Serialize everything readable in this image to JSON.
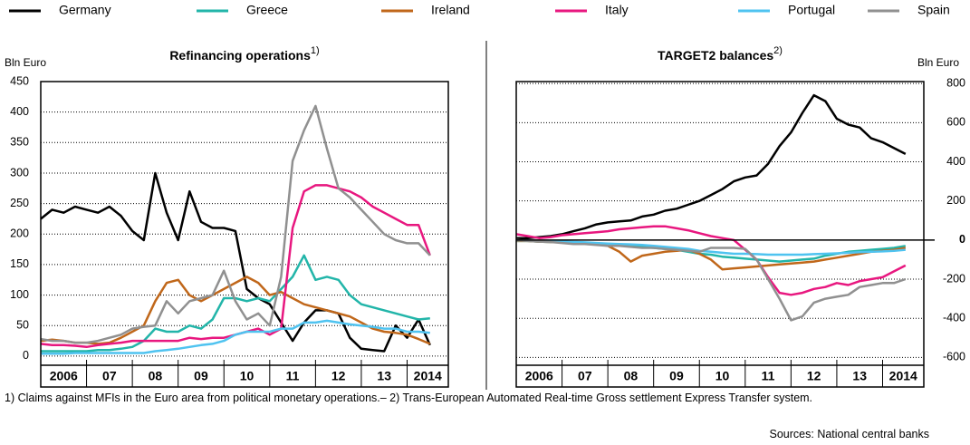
{
  "chart_data": [
    {
      "type": "line",
      "title": "Refinancing operations",
      "title_note": "1)",
      "y_label": "Bln Euro",
      "yaxis_position": "left",
      "grid": true,
      "x": [
        2006,
        2006.25,
        2006.5,
        2006.75,
        2007,
        2007.25,
        2007.5,
        2007.75,
        2008,
        2008.25,
        2008.5,
        2008.75,
        2009,
        2009.25,
        2009.5,
        2009.75,
        2010,
        2010.25,
        2010.5,
        2010.75,
        2011,
        2011.25,
        2011.5,
        2011.75,
        2012,
        2012.25,
        2012.5,
        2012.75,
        2013,
        2013.25,
        2013.5,
        2013.75,
        2014,
        2014.25,
        2014.5
      ],
      "xlim": [
        2006,
        2014.9
      ],
      "xticks": [
        {
          "value": 2006,
          "label": "2006"
        },
        {
          "value": 2007,
          "label": "07"
        },
        {
          "value": 2008,
          "label": "08"
        },
        {
          "value": 2009,
          "label": "09"
        },
        {
          "value": 2010,
          "label": "10"
        },
        {
          "value": 2011,
          "label": "11"
        },
        {
          "value": 2012,
          "label": "12"
        },
        {
          "value": 2013,
          "label": "13"
        },
        {
          "value": 2014,
          "label": "2014"
        }
      ],
      "ylim": [
        -15,
        450
      ],
      "yticks": [
        0,
        50,
        100,
        150,
        200,
        250,
        300,
        350,
        400,
        450
      ],
      "series": [
        {
          "name": "Germany",
          "color": "#000000",
          "values": [
            225,
            240,
            235,
            245,
            240,
            235,
            245,
            230,
            205,
            190,
            300,
            235,
            190,
            270,
            220,
            210,
            210,
            205,
            110,
            95,
            85,
            55,
            25,
            55,
            75,
            75,
            70,
            30,
            12,
            10,
            8,
            50,
            30,
            60,
            18
          ]
        },
        {
          "name": "Greece",
          "color": "#22b5a9",
          "values": [
            8,
            8,
            8,
            8,
            8,
            10,
            10,
            12,
            15,
            25,
            45,
            40,
            40,
            50,
            45,
            60,
            95,
            95,
            90,
            95,
            90,
            110,
            130,
            165,
            125,
            130,
            125,
            100,
            85,
            80,
            75,
            70,
            65,
            60,
            62
          ]
        },
        {
          "name": "Ireland",
          "color": "#c0671a",
          "values": [
            25,
            27,
            25,
            22,
            22,
            20,
            22,
            30,
            40,
            50,
            90,
            120,
            125,
            100,
            90,
            100,
            110,
            120,
            130,
            120,
            100,
            105,
            95,
            85,
            80,
            75,
            70,
            65,
            55,
            45,
            40,
            38,
            35,
            28,
            20
          ]
        },
        {
          "name": "Italy",
          "color": "#e8177f",
          "values": [
            20,
            18,
            18,
            17,
            15,
            18,
            20,
            22,
            25,
            25,
            25,
            25,
            25,
            30,
            28,
            30,
            30,
            35,
            40,
            45,
            35,
            45,
            210,
            270,
            280,
            280,
            275,
            270,
            260,
            245,
            235,
            225,
            215,
            215,
            165
          ]
        },
        {
          "name": "Portugal",
          "color": "#4fc3f0",
          "values": [
            4,
            4,
            4,
            5,
            5,
            5,
            5,
            5,
            5,
            5,
            8,
            10,
            12,
            15,
            18,
            20,
            25,
            35,
            40,
            40,
            40,
            45,
            45,
            55,
            55,
            58,
            55,
            52,
            50,
            48,
            45,
            45,
            40,
            40,
            38
          ]
        },
        {
          "name": "Spain",
          "color": "#909090",
          "values": [
            28,
            25,
            25,
            22,
            22,
            25,
            30,
            35,
            45,
            48,
            50,
            90,
            70,
            90,
            95,
            100,
            140,
            90,
            60,
            70,
            50,
            130,
            320,
            370,
            410,
            340,
            275,
            260,
            240,
            220,
            200,
            190,
            185,
            185,
            165
          ]
        }
      ]
    },
    {
      "type": "line",
      "title": "TARGET2 balances",
      "title_note": "2)",
      "y_label": "Bln Euro",
      "yaxis_position": "right",
      "grid": true,
      "zero_line": true,
      "x": [
        2006,
        2006.25,
        2006.5,
        2006.75,
        2007,
        2007.25,
        2007.5,
        2007.75,
        2008,
        2008.25,
        2008.5,
        2008.75,
        2009,
        2009.25,
        2009.5,
        2009.75,
        2010,
        2010.25,
        2010.5,
        2010.75,
        2011,
        2011.25,
        2011.5,
        2011.75,
        2012,
        2012.25,
        2012.5,
        2012.75,
        2013,
        2013.25,
        2013.5,
        2013.75,
        2014,
        2014.25,
        2014.5
      ],
      "xlim": [
        2006,
        2014.9
      ],
      "xticks": [
        {
          "value": 2006,
          "label": "2006"
        },
        {
          "value": 2007,
          "label": "07"
        },
        {
          "value": 2008,
          "label": "08"
        },
        {
          "value": 2009,
          "label": "09"
        },
        {
          "value": 2010,
          "label": "10"
        },
        {
          "value": 2011,
          "label": "11"
        },
        {
          "value": 2012,
          "label": "12"
        },
        {
          "value": 2013,
          "label": "13"
        },
        {
          "value": 2014,
          "label": "2014"
        }
      ],
      "ylim": [
        -640,
        810
      ],
      "yticks": [
        -600,
        -400,
        -200,
        0,
        200,
        400,
        600,
        800
      ],
      "series": [
        {
          "color": "#000000",
          "values": [
            10,
            10,
            15,
            20,
            30,
            45,
            60,
            80,
            90,
            95,
            100,
            120,
            130,
            150,
            160,
            180,
            200,
            230,
            260,
            300,
            320,
            330,
            390,
            480,
            550,
            650,
            740,
            710,
            620,
            590,
            575,
            520,
            500,
            470,
            440
          ]
        },
        {
          "color": "#22b5a9",
          "values": [
            -5,
            -5,
            -8,
            -10,
            -10,
            -12,
            -15,
            -20,
            -20,
            -25,
            -30,
            -35,
            -40,
            -45,
            -50,
            -60,
            -70,
            -75,
            -85,
            -90,
            -95,
            -100,
            -105,
            -110,
            -105,
            -100,
            -95,
            -80,
            -70,
            -60,
            -55,
            -50,
            -45,
            -40,
            -30
          ]
        },
        {
          "color": "#c0671a",
          "values": [
            -5,
            -5,
            -8,
            -10,
            -10,
            -12,
            -15,
            -20,
            -30,
            -60,
            -110,
            -80,
            -70,
            -60,
            -55,
            -50,
            -70,
            -100,
            -150,
            -145,
            -140,
            -135,
            -130,
            -125,
            -120,
            -115,
            -110,
            -100,
            -90,
            -80,
            -70,
            -60,
            -55,
            -50,
            -40
          ]
        },
        {
          "color": "#e8177f",
          "values": [
            30,
            20,
            10,
            15,
            25,
            30,
            35,
            40,
            45,
            55,
            60,
            65,
            70,
            70,
            60,
            50,
            35,
            20,
            10,
            0,
            -50,
            -100,
            -190,
            -270,
            -280,
            -270,
            -250,
            -240,
            -220,
            -230,
            -210,
            -200,
            -190,
            -160,
            -130
          ]
        },
        {
          "color": "#4fc3f0",
          "values": [
            -2,
            -3,
            -5,
            -5,
            -8,
            -10,
            -12,
            -15,
            -18,
            -20,
            -22,
            -25,
            -30,
            -35,
            -40,
            -45,
            -55,
            -60,
            -65,
            -70,
            -70,
            -72,
            -75,
            -75,
            -75,
            -75,
            -72,
            -70,
            -68,
            -65,
            -62,
            -60,
            -58,
            -55,
            -50
          ]
        },
        {
          "color": "#909090",
          "values": [
            0,
            -5,
            -8,
            -10,
            -15,
            -20,
            -20,
            -25,
            -30,
            -30,
            -35,
            -40,
            -40,
            -45,
            -50,
            -55,
            -60,
            -40,
            -40,
            -40,
            -45,
            -100,
            -200,
            -300,
            -410,
            -390,
            -320,
            -300,
            -290,
            -280,
            -240,
            -230,
            -220,
            -220,
            -200
          ]
        }
      ]
    }
  ],
  "footnote": "1) Claims against MFIs in the Euro area from political monetary operations.– 2) Trans-European Automated Real-time Gross settlement Express Transfer system.",
  "source": "Sources: National central banks"
}
